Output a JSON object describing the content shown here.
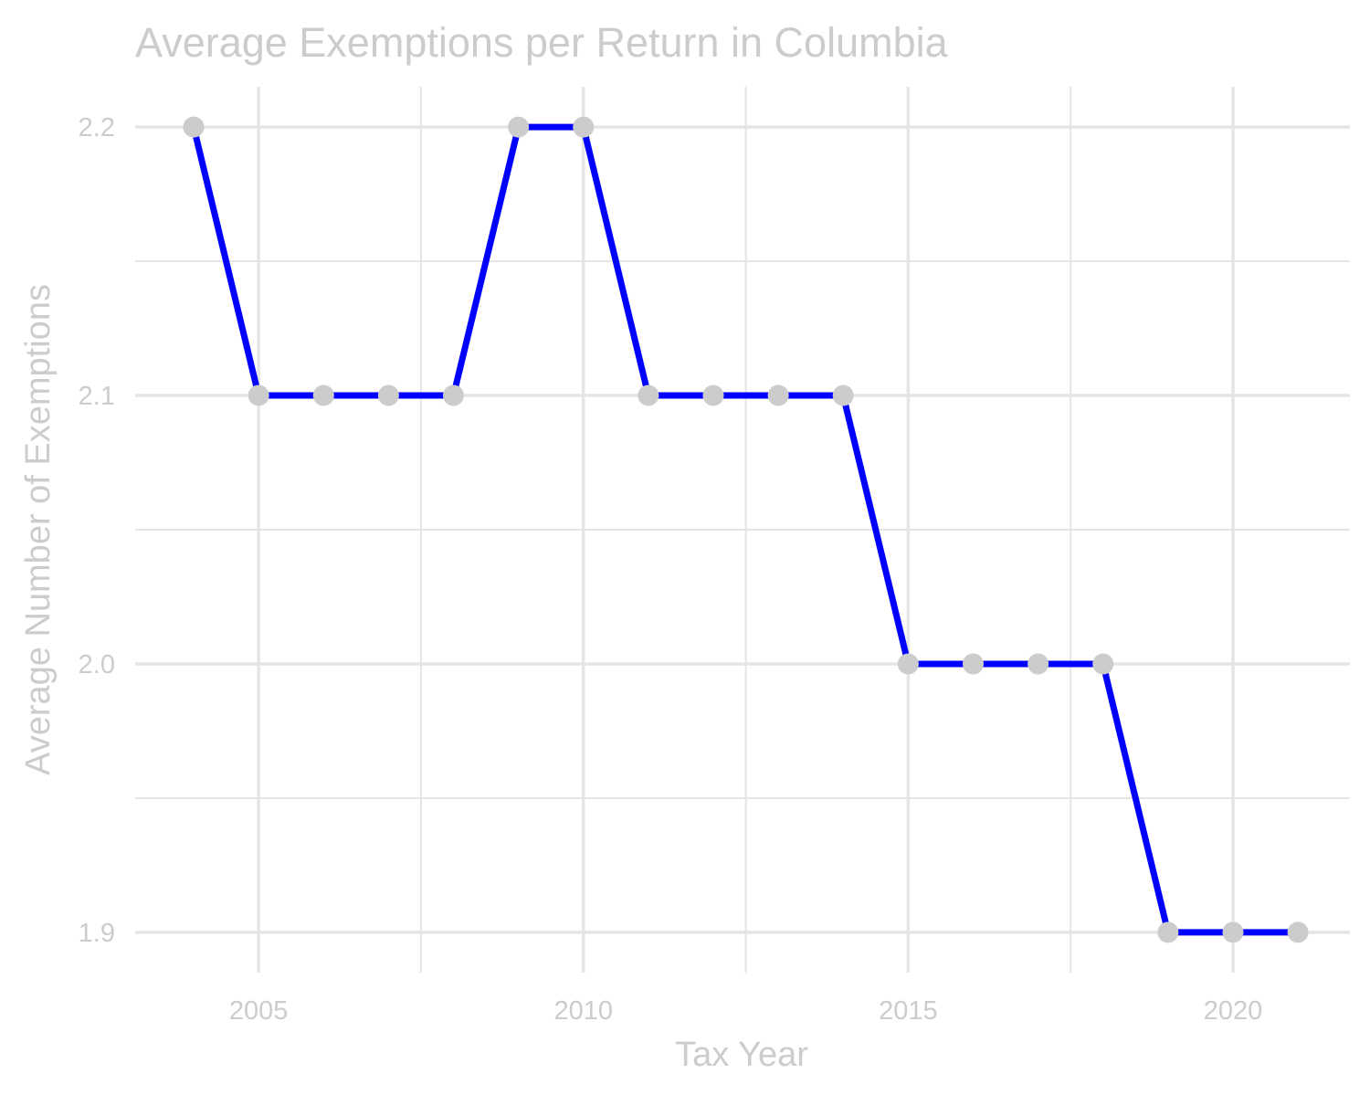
{
  "chart_data": {
    "type": "line",
    "title": "Average Exemptions per Return in Columbia",
    "xlabel": "Tax Year",
    "ylabel": "Average Number of Exemptions",
    "x": [
      2004,
      2005,
      2006,
      2007,
      2008,
      2009,
      2010,
      2011,
      2012,
      2013,
      2014,
      2015,
      2016,
      2017,
      2018,
      2019,
      2020,
      2021
    ],
    "series": [
      {
        "values": [
          2.2,
          2.1,
          2.1,
          2.1,
          2.1,
          2.2,
          2.2,
          2.1,
          2.1,
          2.1,
          2.1,
          2.0,
          2.0,
          2.0,
          2.0,
          1.9,
          1.9,
          1.9
        ]
      }
    ],
    "xlim": [
      2003.1,
      2021.8
    ],
    "ylim": [
      1.885,
      2.215
    ],
    "x_ticks": [
      2005,
      2010,
      2015,
      2020
    ],
    "x_tick_labels": [
      "2005",
      "2010",
      "2015",
      "2020"
    ],
    "x_minor_ticks": [
      2007.5,
      2012.5,
      2017.5
    ],
    "y_ticks": [
      1.9,
      2.0,
      2.1,
      2.2
    ],
    "y_tick_labels": [
      "1.9",
      "2.0",
      "2.1",
      "2.2"
    ],
    "y_minor_ticks": [
      1.95,
      2.05,
      2.15
    ],
    "grid": true,
    "colors": {
      "line": "#0000ff",
      "points": "#cccccc",
      "text": "#cccccc",
      "grid": "#e5e5e5"
    }
  }
}
